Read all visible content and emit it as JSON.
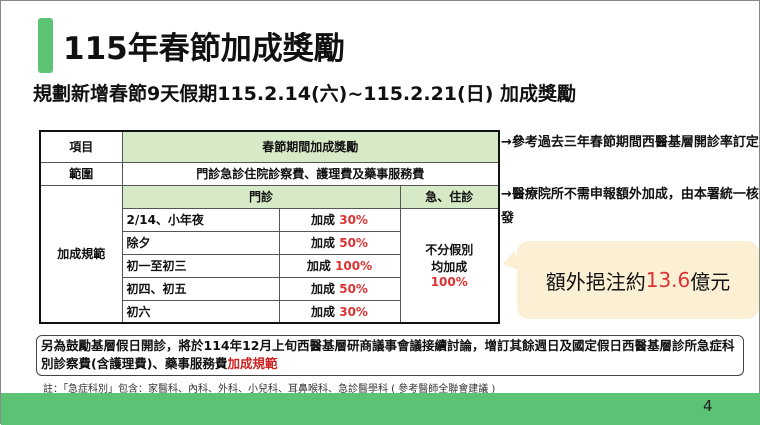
{
  "title": "115年春節加成獎勵",
  "subtitle": "規劃新增春節9天假期115.2.14(六)~115.2.21(日) 加成獎勵",
  "table": {
    "h_item": "項目",
    "h_reward": "春節期間加成獎勵",
    "scope_label": "範圍",
    "scope_value": "門診急診住院診察費、護理費及藥事服務費",
    "rule_label": "加成規範",
    "outpatient": "門診",
    "er_inpatient": "急、住診",
    "rows": [
      {
        "day": "2/14、小年夜",
        "prefix": "加成",
        "pct": "30%"
      },
      {
        "day": "除夕",
        "prefix": "加成",
        "pct": "50%"
      },
      {
        "day": "初一至初三",
        "prefix": "加成",
        "pct": "100%"
      },
      {
        "day": "初四、初五",
        "prefix": "加成",
        "pct": "50%"
      },
      {
        "day": "初六",
        "prefix": "加成",
        "pct": "30%"
      }
    ],
    "er_line1": "不分假別",
    "er_line2": "均加成",
    "er_pct": "100%"
  },
  "annotations": [
    "→參考過去三年春節期間西醫基層開診率訂定",
    "→醫療院所不需申報額外加成，由本署統一核發"
  ],
  "callout": {
    "prefix": "額外挹注約",
    "amount": "13.6",
    "suffix": "億元"
  },
  "box": {
    "text": "另為鼓勵基層假日開診，將於114年12月上旬西醫基層研商議事會議接續討論，增訂其餘週日及國定假日西醫基層診所急症科別診察費(含護理費)、藥事服務費",
    "highlight": "加成規範"
  },
  "note": "註：「急症科別」包含：家醫科、內科、外科、小兒科、耳鼻喉科、急診醫學科 ( 參考醫師全聯會建議 )",
  "page_number": "4",
  "colors": {
    "accent": "#5cc374",
    "header_fill": "#d7eac8",
    "highlight": "#d33333",
    "callout_fill": "#fbefd4"
  }
}
